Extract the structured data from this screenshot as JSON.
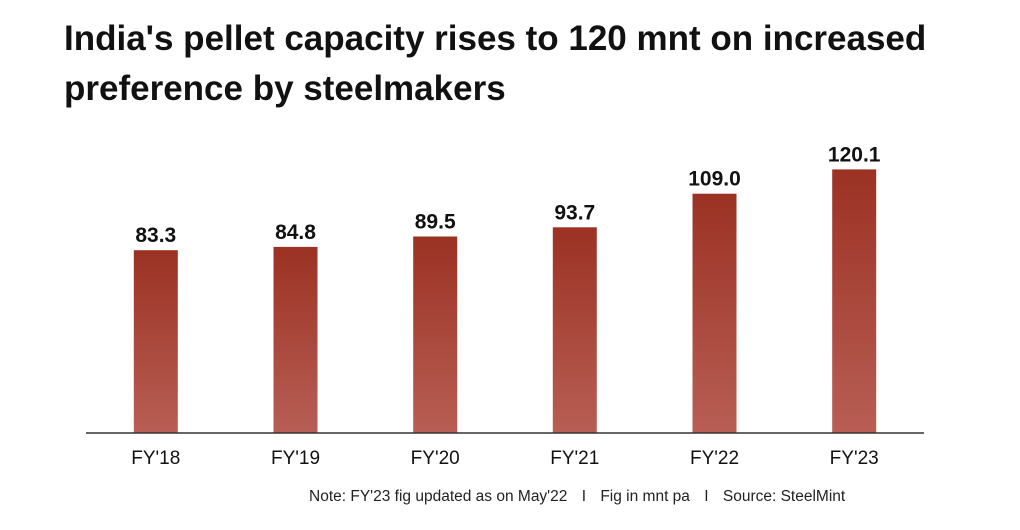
{
  "chart_data": {
    "type": "bar",
    "title": "India's pellet capacity rises to 120 mnt on increased preference by steelmakers",
    "categories": [
      "FY'18",
      "FY'19",
      "FY'20",
      "FY'21",
      "FY'22",
      "FY'23"
    ],
    "values": [
      83.3,
      84.8,
      89.5,
      93.7,
      109.0,
      120.1
    ],
    "value_labels": [
      "83.3",
      "84.8",
      "89.5",
      "93.7",
      "109.0",
      "120.1"
    ],
    "unit": "mnt pa",
    "xlabel": "",
    "ylabel": "",
    "ylim": [
      0,
      135
    ],
    "grid": false,
    "legend": "none",
    "bar_color_top": "#9b3224",
    "bar_color_bottom": "#b85e54"
  },
  "footer": {
    "note": "Note: FY'23 fig updated as on May'22",
    "separator": "I",
    "unit_note": "Fig in mnt pa",
    "source": "Source: SteelMint"
  }
}
